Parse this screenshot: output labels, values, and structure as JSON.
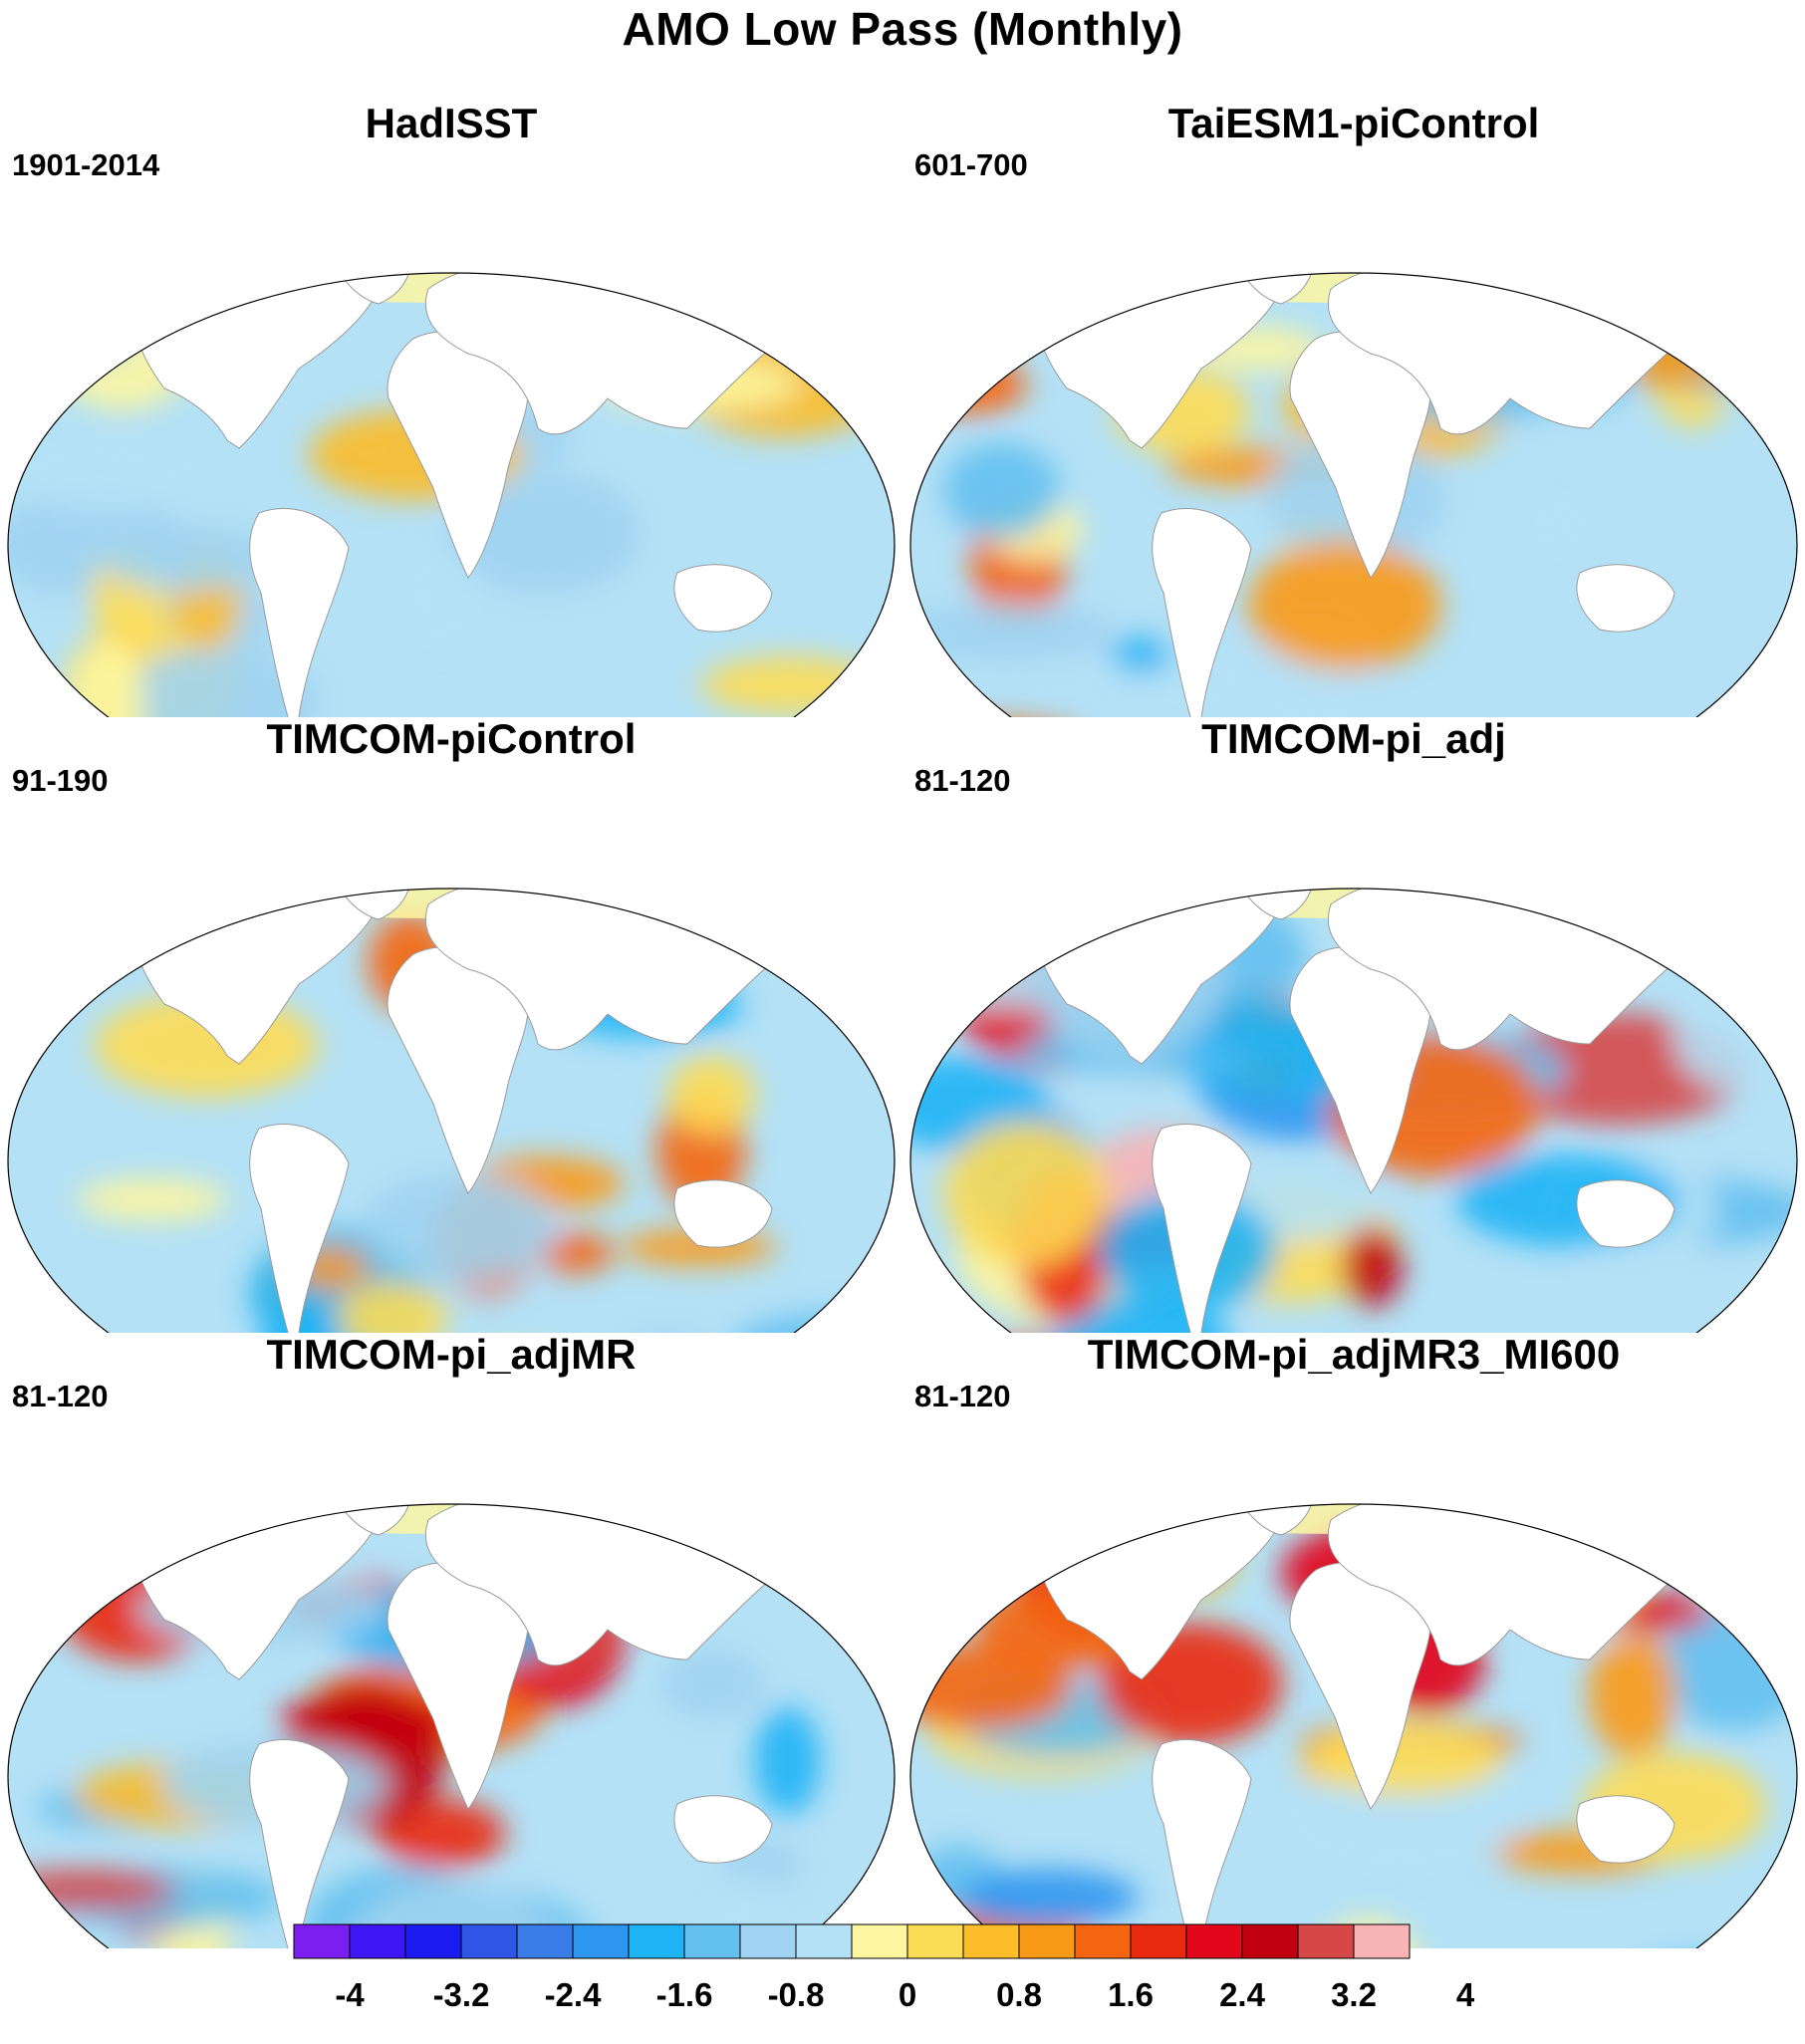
{
  "figure": {
    "title": "AMO Low Pass (Monthly)"
  },
  "panels": [
    {
      "title": "HadISST",
      "period": "1901-2014"
    },
    {
      "title": "TaiESM1-piControl",
      "period": "601-700"
    },
    {
      "title": "TIMCOM-piControl",
      "period": "91-190"
    },
    {
      "title": "TIMCOM-pi_adj",
      "period": "81-120"
    },
    {
      "title": "TIMCOM-pi_adjMR",
      "period": "81-120"
    },
    {
      "title": "TIMCOM-pi_adjMR3_MI600",
      "period": "81-120"
    }
  ],
  "colorbar": {
    "colors": [
      "#7b1ff0",
      "#3c16f5",
      "#1c1cf0",
      "#2e55e6",
      "#3a7ce8",
      "#2c96f0",
      "#1eb4f5",
      "#64c0ef",
      "#9fd3f1",
      "#b4e1f6",
      "#fdf6a1",
      "#fddc55",
      "#fbbd2a",
      "#f99a16",
      "#f5650f",
      "#ea2a0f",
      "#e2071a",
      "#c0000f",
      "#d64848",
      "#f7b3b5"
    ],
    "tick_labels": [
      "-4",
      "-3.2",
      "-2.4",
      "-1.6",
      "-0.8",
      "0",
      "0.8",
      "1.6",
      "2.4",
      "3.2",
      "4"
    ]
  }
}
